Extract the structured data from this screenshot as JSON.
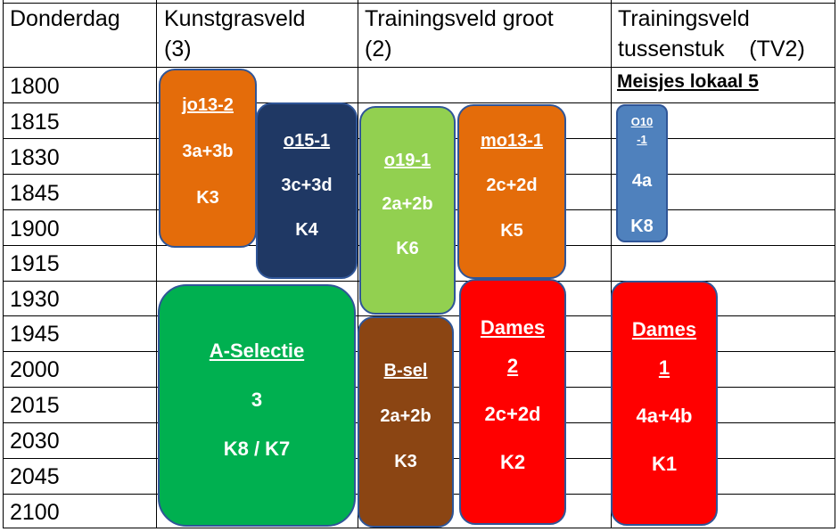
{
  "header": {
    "day": "Donderdag",
    "col1_line1": "Kunstgrasveld",
    "col1_line2": "(3)",
    "col2_line1": "Trainingsveld groot",
    "col2_line2": "(2)",
    "col3_line1": "Trainingsveld",
    "col3_line2": "tussenstuk    (TV2)"
  },
  "times": [
    "1800",
    "1815",
    "1830",
    "1845",
    "1900",
    "1915",
    "1930",
    "1945",
    "2000",
    "2015",
    "2030",
    "2045",
    "2100"
  ],
  "note": "Meisjes lokaal 5",
  "blocks": {
    "jo13_2": {
      "team": "jo13-2",
      "fields": "3a+3b",
      "room": "K3",
      "color": "#e46c0a"
    },
    "o15_1": {
      "team": "o15-1",
      "fields": "3c+3d",
      "room": "K4",
      "color": "#1f3864"
    },
    "o19_1": {
      "team": "o19-1",
      "fields": "2a+2b",
      "room": "K6",
      "color": "#92d050"
    },
    "mo13_1": {
      "team": "mo13-1",
      "fields": "2c+2d",
      "room": "K5",
      "color": "#e46c0a"
    },
    "o10_1": {
      "team_line1": "O10",
      "team_line2": "-1",
      "fields": "4a",
      "room": "K8",
      "color": "#4f81bd"
    },
    "a_selectie": {
      "team": "A-Selectie",
      "fields": "3",
      "room": "K8 / K7",
      "color": "#00b050"
    },
    "b_sel": {
      "team": "B-sel",
      "fields": "2a+2b",
      "room": "K3",
      "color": "#8b4513"
    },
    "dames2": {
      "team_line1": "Dames",
      "team_line2": "2",
      "fields": "2c+2d",
      "room": "K2",
      "color": "#ff0000"
    },
    "dames1": {
      "team_line1": "Dames",
      "team_line2": "1",
      "fields": "4a+4b",
      "room": "K1",
      "color": "#ff0000"
    }
  }
}
